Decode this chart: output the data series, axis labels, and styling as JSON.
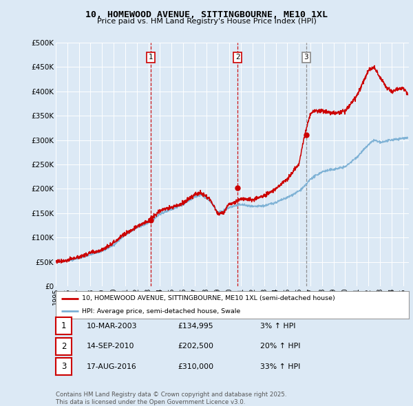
{
  "title": "10, HOMEWOOD AVENUE, SITTINGBOURNE, ME10 1XL",
  "subtitle": "Price paid vs. HM Land Registry's House Price Index (HPI)",
  "bg_color": "#dce9f5",
  "plot_bg_color": "#dce9f5",
  "grid_color": "#ffffff",
  "red_color": "#cc0000",
  "blue_color": "#7aafd4",
  "dashed_color_12": "#cc0000",
  "dashed_color_3": "#888888",
  "ylim": [
    0,
    500000
  ],
  "yticks": [
    0,
    50000,
    100000,
    150000,
    200000,
    250000,
    300000,
    350000,
    400000,
    450000,
    500000
  ],
  "ytick_labels": [
    "£0",
    "£50K",
    "£100K",
    "£150K",
    "£200K",
    "£250K",
    "£300K",
    "£350K",
    "£400K",
    "£450K",
    "£500K"
  ],
  "sales": [
    {
      "year": 2003.19,
      "price": 134995,
      "label": "1",
      "dashed": "red"
    },
    {
      "year": 2010.71,
      "price": 202500,
      "label": "2",
      "dashed": "red"
    },
    {
      "year": 2016.63,
      "price": 310000,
      "label": "3",
      "dashed": "grey"
    }
  ],
  "sale_table": [
    {
      "num": "1",
      "date": "10-MAR-2003",
      "price": "£134,995",
      "change": "3% ↑ HPI"
    },
    {
      "num": "2",
      "date": "14-SEP-2010",
      "price": "£202,500",
      "change": "20% ↑ HPI"
    },
    {
      "num": "3",
      "date": "17-AUG-2016",
      "price": "£310,000",
      "change": "33% ↑ HPI"
    }
  ],
  "legend_line1": "10, HOMEWOOD AVENUE, SITTINGBOURNE, ME10 1XL (semi-detached house)",
  "legend_line2": "HPI: Average price, semi-detached house, Swale",
  "footer": "Contains HM Land Registry data © Crown copyright and database right 2025.\nThis data is licensed under the Open Government Licence v3.0.",
  "xmin": 1995,
  "xmax": 2025.5,
  "hpi_anchors_y": [
    1995,
    1996,
    1997,
    1998,
    1999,
    2000,
    2001,
    2002,
    2003,
    2004,
    2005,
    2006,
    2007,
    2007.5,
    2008,
    2008.5,
    2009,
    2009.5,
    2010,
    2010.5,
    2011,
    2012,
    2013,
    2014,
    2015,
    2016,
    2016.5,
    2017,
    2018,
    2019,
    2020,
    2021,
    2022,
    2022.5,
    2023,
    2024,
    2025.3
  ],
  "hpi_anchors_v": [
    51000,
    52000,
    58000,
    65000,
    72000,
    85000,
    105000,
    120000,
    130000,
    148000,
    158000,
    168000,
    183000,
    188000,
    182000,
    170000,
    152000,
    155000,
    162000,
    165000,
    168000,
    163000,
    165000,
    172000,
    182000,
    195000,
    205000,
    220000,
    235000,
    240000,
    245000,
    265000,
    290000,
    300000,
    295000,
    300000,
    305000
  ],
  "price_anchors_y": [
    1995,
    1996,
    1997,
    1998,
    1999,
    2000,
    2001,
    2002,
    2003,
    2004,
    2005,
    2006,
    2007,
    2007.5,
    2008,
    2008.5,
    2009,
    2009.5,
    2010,
    2010.5,
    2011,
    2012,
    2013,
    2014,
    2015,
    2016,
    2016.5,
    2017,
    2017.5,
    2018,
    2019,
    2020,
    2021,
    2022,
    2022.5,
    2023,
    2023.5,
    2024,
    2025,
    2025.3
  ],
  "price_anchors_v": [
    51000,
    53000,
    60000,
    68000,
    75000,
    90000,
    108000,
    122000,
    134000,
    155000,
    162000,
    170000,
    188000,
    192000,
    185000,
    172000,
    148000,
    152000,
    168000,
    172000,
    180000,
    178000,
    185000,
    200000,
    220000,
    250000,
    310000,
    355000,
    360000,
    360000,
    355000,
    360000,
    390000,
    442000,
    450000,
    430000,
    410000,
    400000,
    408000,
    398000
  ]
}
